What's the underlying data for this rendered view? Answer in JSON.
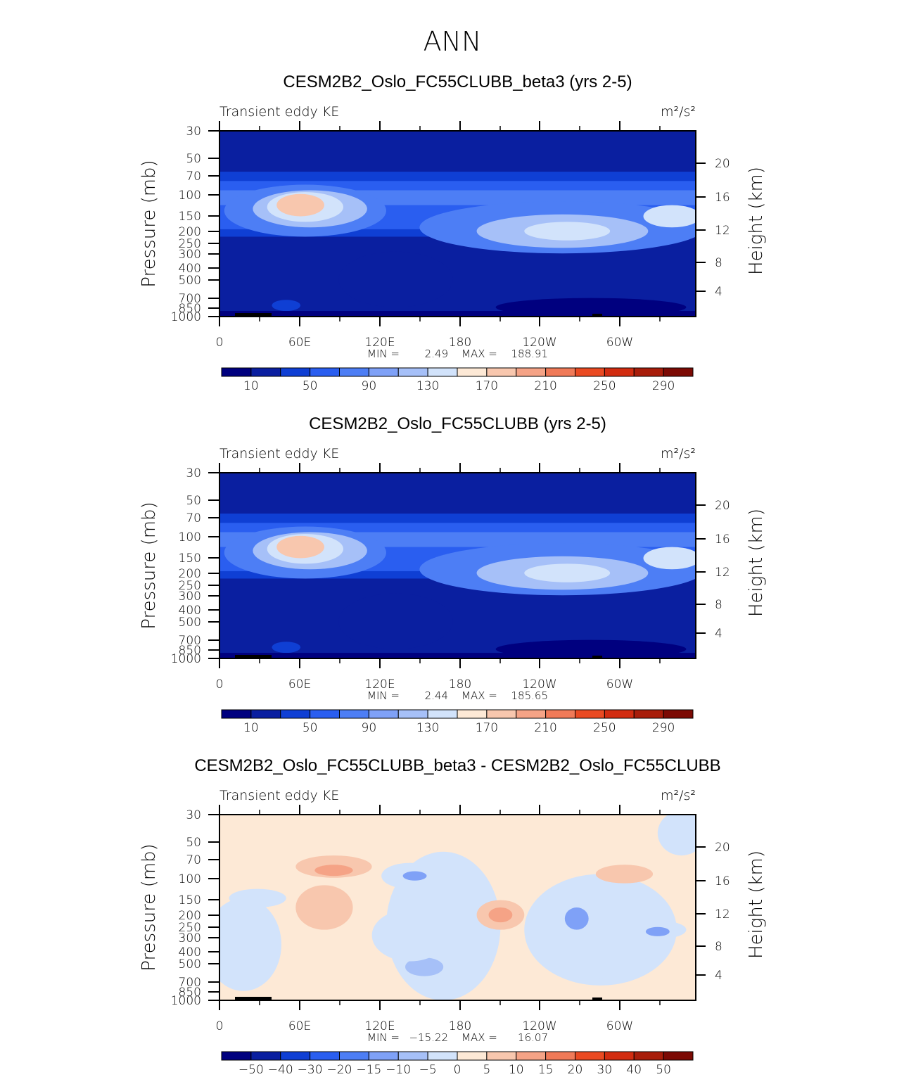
{
  "figure": {
    "title": "ANN"
  },
  "chart_data": [
    {
      "type": "heatmap",
      "title": "CESM2B2_Oslo_FC55CLUBB_beta3 (yrs 2-5)",
      "subtitle_left": "Transient eddy KE",
      "units": "m²/s²",
      "ylabel": "Pressure (mb)",
      "y2label": "Height (km)",
      "x_ticks": [
        "0",
        "60E",
        "120E",
        "180",
        "120W",
        "60W"
      ],
      "y_ticks": [
        "30",
        "50",
        "70",
        "100",
        "150",
        "200",
        "250",
        "300",
        "400",
        "500",
        "700",
        "850",
        "1000"
      ],
      "y2_ticks": [
        "20",
        "16",
        "12",
        "8",
        "4"
      ],
      "stats": {
        "min_label": "MIN =",
        "min_value": "2.49",
        "max_label": "MAX =",
        "max_value": "188.91"
      },
      "colorbar_labels": [
        "10",
        "50",
        "90",
        "130",
        "170",
        "210",
        "250",
        "290"
      ]
    },
    {
      "type": "heatmap",
      "title": "CESM2B2_Oslo_FC55CLUBB (yrs 2-5)",
      "subtitle_left": "Transient eddy KE",
      "units": "m²/s²",
      "ylabel": "Pressure (mb)",
      "y2label": "Height (km)",
      "x_ticks": [
        "0",
        "60E",
        "120E",
        "180",
        "120W",
        "60W"
      ],
      "y_ticks": [
        "30",
        "50",
        "70",
        "100",
        "150",
        "200",
        "250",
        "300",
        "400",
        "500",
        "700",
        "850",
        "1000"
      ],
      "y2_ticks": [
        "20",
        "16",
        "12",
        "8",
        "4"
      ],
      "stats": {
        "min_label": "MIN =",
        "min_value": "2.44",
        "max_label": "MAX =",
        "max_value": "185.65"
      },
      "colorbar_labels": [
        "10",
        "50",
        "90",
        "130",
        "170",
        "210",
        "250",
        "290"
      ]
    },
    {
      "type": "heatmap",
      "title": "CESM2B2_Oslo_FC55CLUBB_beta3 - CESM2B2_Oslo_FC55CLUBB",
      "subtitle_left": "Transient eddy KE",
      "units": "m²/s²",
      "ylabel": "Pressure (mb)",
      "y2label": "Height (km)",
      "x_ticks": [
        "0",
        "60E",
        "120E",
        "180",
        "120W",
        "60W"
      ],
      "y_ticks": [
        "30",
        "50",
        "70",
        "100",
        "150",
        "200",
        "250",
        "300",
        "400",
        "500",
        "700",
        "850",
        "1000"
      ],
      "y2_ticks": [
        "20",
        "16",
        "12",
        "8",
        "4"
      ],
      "stats": {
        "min_label": "MIN =",
        "min_value": "−15.22",
        "max_label": "MAX =",
        "max_value": "16.07"
      },
      "colorbar_labels": [
        "−50",
        "−40",
        "−30",
        "−20",
        "−15",
        "−10",
        "−5",
        "0",
        "5",
        "10",
        "15",
        "20",
        "30",
        "40",
        "50"
      ]
    }
  ],
  "colors": [
    "#00007f",
    "#0a1fa0",
    "#0f3fd4",
    "#2a5ef0",
    "#4d7ef5",
    "#7fa1f7",
    "#a6c0f8",
    "#d2e3fb",
    "#fde9d6",
    "#f8c7ae",
    "#f5a386",
    "#f07a58",
    "#ea4a22",
    "#d22c10",
    "#a81d0a",
    "#7c0a04"
  ]
}
